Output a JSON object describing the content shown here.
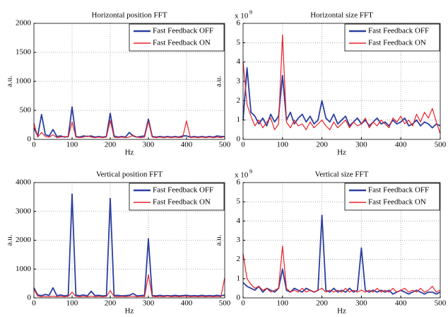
{
  "chart_data": [
    {
      "type": "line",
      "title": "Horizontal position FFT",
      "x_label": "Hz",
      "y_label": "a.u.",
      "grid": true,
      "legend": "upper right",
      "x": [
        0,
        10,
        20,
        30,
        40,
        50,
        60,
        70,
        80,
        90,
        100,
        110,
        120,
        130,
        140,
        150,
        160,
        170,
        180,
        190,
        200,
        210,
        220,
        230,
        240,
        250,
        260,
        270,
        280,
        290,
        300,
        310,
        320,
        330,
        340,
        350,
        360,
        370,
        380,
        390,
        400,
        410,
        420,
        430,
        440,
        450,
        460,
        470,
        480,
        490,
        500
      ],
      "xlim": [
        0,
        500
      ],
      "xticks": [
        0,
        100,
        200,
        300,
        400,
        500
      ],
      "ylim": [
        0,
        2000
      ],
      "yticks": [
        0,
        500,
        1000,
        1500,
        2000
      ],
      "series": [
        {
          "name": "Fast Feedback OFF",
          "color": "#2b3fa0",
          "values": [
            200,
            60,
            430,
            80,
            60,
            170,
            50,
            60,
            40,
            50,
            560,
            50,
            40,
            60,
            50,
            60,
            40,
            50,
            40,
            50,
            450,
            60,
            40,
            50,
            40,
            120,
            60,
            40,
            50,
            60,
            350,
            50,
            40,
            50,
            40,
            50,
            40,
            50,
            40,
            60,
            60,
            40,
            50,
            40,
            50,
            40,
            50,
            40,
            60,
            50,
            50
          ]
        },
        {
          "name": "Fast Feedback ON",
          "color": "#e8222a",
          "values": [
            280,
            40,
            120,
            50,
            40,
            80,
            30,
            40,
            50,
            40,
            300,
            40,
            30,
            40,
            60,
            40,
            30,
            40,
            30,
            40,
            330,
            40,
            30,
            40,
            30,
            40,
            70,
            40,
            30,
            40,
            310,
            40,
            30,
            40,
            30,
            40,
            30,
            40,
            30,
            40,
            320,
            30,
            40,
            30,
            40,
            30,
            40,
            30,
            40,
            30,
            50
          ]
        }
      ]
    },
    {
      "type": "line",
      "title": "Horizontal size FFT",
      "x_label": "Hz",
      "y_label": "a.u.",
      "y_scale_label": "x 10",
      "y_scale_exponent": "9",
      "grid": true,
      "legend": "upper right",
      "x": [
        0,
        10,
        20,
        30,
        40,
        50,
        60,
        70,
        80,
        90,
        100,
        110,
        120,
        130,
        140,
        150,
        160,
        170,
        180,
        190,
        200,
        210,
        220,
        230,
        240,
        250,
        260,
        270,
        280,
        290,
        300,
        310,
        320,
        330,
        340,
        350,
        360,
        370,
        380,
        390,
        400,
        410,
        420,
        430,
        440,
        450,
        460,
        470,
        480,
        490,
        500
      ],
      "xlim": [
        0,
        500
      ],
      "xticks": [
        0,
        100,
        200,
        300,
        400,
        500
      ],
      "ylim": [
        0,
        6
      ],
      "yticks": [
        0,
        1,
        2,
        3,
        4,
        5,
        6
      ],
      "series": [
        {
          "name": "Fast Feedback OFF",
          "color": "#2b3fa0",
          "values": [
            1.0,
            3.7,
            1.4,
            1.2,
            0.8,
            1.1,
            0.7,
            1.3,
            0.9,
            1.2,
            3.3,
            1.0,
            1.4,
            0.8,
            1.1,
            1.3,
            0.9,
            1.2,
            0.8,
            1.0,
            2.0,
            1.1,
            0.9,
            1.3,
            0.8,
            1.0,
            1.2,
            0.7,
            0.9,
            1.1,
            0.8,
            1.0,
            0.7,
            0.9,
            1.1,
            0.8,
            0.9,
            0.7,
            1.0,
            0.8,
            0.9,
            1.1,
            0.7,
            0.8,
            1.0,
            0.7,
            0.9,
            0.8,
            0.6,
            0.8,
            0.7
          ]
        },
        {
          "name": "Fast Feedback ON",
          "color": "#e8222a",
          "values": [
            4.0,
            1.8,
            1.2,
            0.7,
            1.0,
            0.6,
            0.9,
            1.1,
            0.5,
            0.8,
            5.4,
            0.9,
            0.6,
            1.0,
            0.7,
            0.8,
            0.5,
            0.9,
            0.6,
            0.8,
            1.0,
            0.7,
            0.5,
            0.9,
            0.6,
            0.8,
            1.0,
            0.6,
            0.9,
            0.7,
            0.8,
            1.1,
            0.6,
            0.9,
            0.7,
            1.0,
            0.8,
            0.6,
            1.1,
            0.9,
            1.2,
            0.8,
            1.0,
            0.7,
            1.3,
            0.9,
            1.4,
            1.1,
            1.6,
            0.9,
            0.3
          ]
        }
      ]
    },
    {
      "type": "line",
      "title": "Vertical position FFT",
      "x_label": "Hz",
      "y_label": "a.u.",
      "grid": true,
      "legend": "upper right",
      "x": [
        0,
        10,
        20,
        30,
        40,
        50,
        60,
        70,
        80,
        90,
        100,
        110,
        120,
        130,
        140,
        150,
        160,
        170,
        180,
        190,
        200,
        210,
        220,
        230,
        240,
        250,
        260,
        270,
        280,
        290,
        300,
        310,
        320,
        330,
        340,
        350,
        360,
        370,
        380,
        390,
        400,
        410,
        420,
        430,
        440,
        450,
        460,
        470,
        480,
        490,
        500
      ],
      "xlim": [
        0,
        500
      ],
      "xticks": [
        0,
        100,
        200,
        300,
        400,
        500
      ],
      "ylim": [
        0,
        4000
      ],
      "yticks": [
        0,
        1000,
        2000,
        3000,
        4000
      ],
      "series": [
        {
          "name": "Fast Feedback OFF",
          "color": "#2b3fa0",
          "values": [
            350,
            100,
            80,
            120,
            90,
            350,
            80,
            100,
            70,
            90,
            3600,
            90,
            80,
            100,
            70,
            230,
            80,
            90,
            70,
            80,
            3450,
            80,
            90,
            70,
            80,
            90,
            150,
            70,
            80,
            90,
            2050,
            80,
            70,
            90,
            70,
            80,
            70,
            90,
            70,
            80,
            90,
            70,
            80,
            70,
            90,
            70,
            80,
            70,
            90,
            70,
            100
          ]
        },
        {
          "name": "Fast Feedback ON",
          "color": "#e8222a",
          "values": [
            300,
            60,
            40,
            50,
            40,
            60,
            40,
            50,
            40,
            50,
            200,
            50,
            40,
            50,
            40,
            60,
            40,
            50,
            40,
            50,
            250,
            50,
            40,
            50,
            40,
            50,
            60,
            40,
            50,
            40,
            800,
            50,
            40,
            50,
            40,
            60,
            40,
            50,
            40,
            50,
            60,
            40,
            50,
            40,
            50,
            40,
            50,
            40,
            50,
            40,
            700
          ]
        }
      ]
    },
    {
      "type": "line",
      "title": "Vertical size FFT",
      "x_label": "Hz",
      "y_label": "a.u.",
      "y_scale_label": "x 10",
      "y_scale_exponent": "9",
      "grid": true,
      "legend": "upper right",
      "x": [
        0,
        10,
        20,
        30,
        40,
        50,
        60,
        70,
        80,
        90,
        100,
        110,
        120,
        130,
        140,
        150,
        160,
        170,
        180,
        190,
        200,
        210,
        220,
        230,
        240,
        250,
        260,
        270,
        280,
        290,
        300,
        310,
        320,
        330,
        340,
        350,
        360,
        370,
        380,
        390,
        400,
        410,
        420,
        430,
        440,
        450,
        460,
        470,
        480,
        490,
        500
      ],
      "xlim": [
        0,
        500
      ],
      "xticks": [
        0,
        100,
        200,
        300,
        400,
        500
      ],
      "ylim": [
        0,
        6
      ],
      "yticks": [
        0,
        1,
        2,
        3,
        4,
        5,
        6
      ],
      "series": [
        {
          "name": "Fast Feedback OFF",
          "color": "#2b3fa0",
          "values": [
            0.8,
            0.6,
            0.5,
            0.4,
            0.6,
            0.3,
            0.5,
            0.4,
            0.3,
            0.5,
            1.5,
            0.4,
            0.3,
            0.5,
            0.4,
            0.3,
            0.5,
            0.4,
            0.3,
            0.4,
            4.3,
            0.4,
            0.3,
            0.5,
            0.3,
            0.4,
            0.3,
            0.5,
            0.3,
            0.4,
            2.6,
            0.4,
            0.3,
            0.4,
            0.3,
            0.4,
            0.3,
            0.4,
            0.2,
            0.3,
            0.4,
            0.3,
            0.2,
            0.3,
            0.4,
            0.3,
            0.2,
            0.3,
            0.3,
            0.2,
            0.3
          ]
        },
        {
          "name": "Fast Feedback ON",
          "color": "#e8222a",
          "values": [
            2.3,
            1.0,
            0.7,
            0.5,
            0.6,
            0.4,
            0.5,
            0.3,
            0.4,
            0.5,
            2.7,
            0.5,
            0.3,
            0.4,
            0.3,
            0.5,
            0.3,
            0.4,
            0.3,
            0.4,
            0.5,
            0.3,
            0.4,
            0.3,
            0.4,
            0.3,
            0.5,
            0.3,
            0.4,
            0.3,
            0.4,
            0.3,
            0.4,
            0.3,
            0.5,
            0.3,
            0.4,
            0.3,
            0.5,
            0.3,
            0.4,
            0.5,
            0.3,
            0.4,
            0.3,
            0.5,
            0.3,
            0.4,
            0.6,
            0.3,
            0.4
          ]
        }
      ]
    }
  ]
}
